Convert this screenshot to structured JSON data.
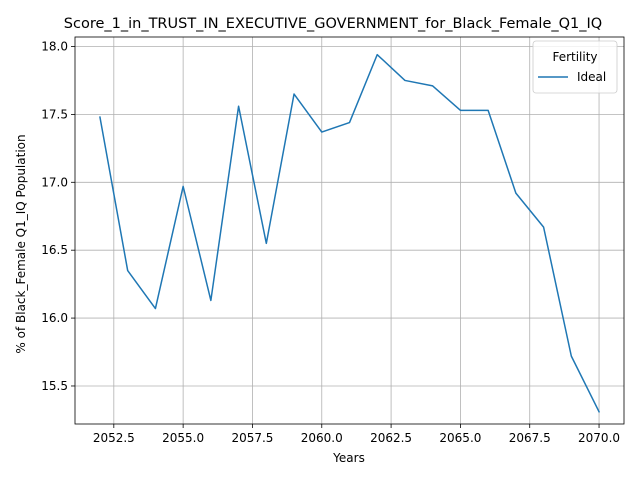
{
  "chart_data": {
    "type": "line",
    "title": "Score_1_in_TRUST_IN_EXECUTIVE_GOVERNMENT_for_Black_Female_Q1_IQ",
    "xlabel": "Years",
    "ylabel": "% of Black_Female Q1_IQ Population",
    "xlim": [
      2051.1,
      2070.9
    ],
    "ylim": [
      15.22,
      18.07
    ],
    "xticks": [
      2052.5,
      2055.0,
      2057.5,
      2060.0,
      2062.5,
      2065.0,
      2067.5,
      2070.0
    ],
    "xtick_labels": [
      "2052.5",
      "2055.0",
      "2057.5",
      "2060.0",
      "2062.5",
      "2065.0",
      "2067.5",
      "2070.0"
    ],
    "yticks": [
      15.5,
      16.0,
      16.5,
      17.0,
      17.5,
      18.0
    ],
    "ytick_labels": [
      "15.5",
      "16.0",
      "16.5",
      "17.0",
      "17.5",
      "18.0"
    ],
    "grid": true,
    "legend": {
      "title": "Fertility",
      "position": "top-right"
    },
    "series": [
      {
        "name": "Ideal",
        "color": "#1f77b4",
        "x": [
          2052,
          2053,
          2054,
          2055,
          2056,
          2057,
          2058,
          2059,
          2060,
          2061,
          2062,
          2063,
          2064,
          2065,
          2066,
          2067,
          2068,
          2069,
          2070
        ],
        "y": [
          17.48,
          16.35,
          16.07,
          16.97,
          16.13,
          17.56,
          16.55,
          17.65,
          17.37,
          17.44,
          17.94,
          17.75,
          17.71,
          17.53,
          17.53,
          16.92,
          16.67,
          15.72,
          15.31
        ]
      }
    ]
  }
}
